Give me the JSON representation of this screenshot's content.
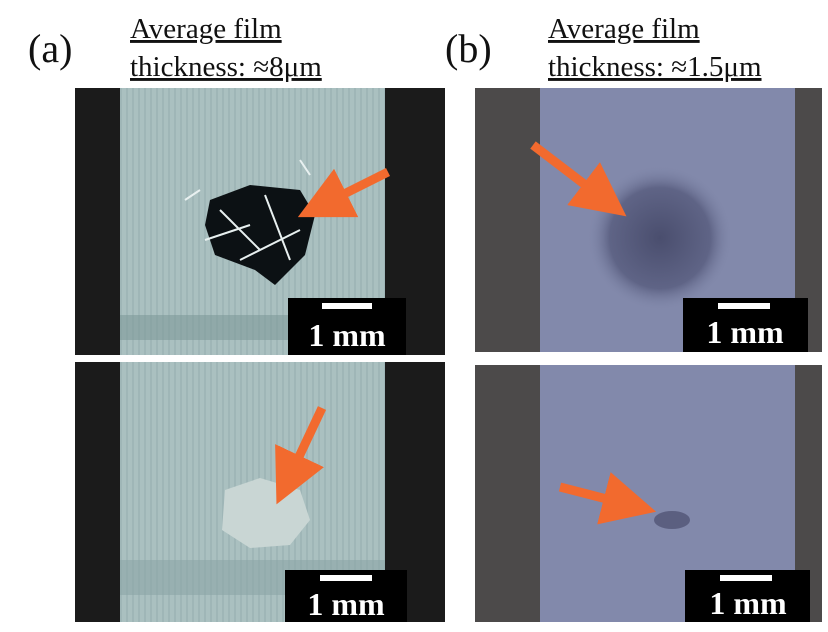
{
  "panels": [
    {
      "label": "(a)",
      "caption": [
        "Average film",
        "thickness: ≈8μm"
      ],
      "images": [
        {
          "scale_bar": "1 mm"
        },
        {
          "scale_bar": "1 mm"
        }
      ]
    },
    {
      "label": "(b)",
      "caption": [
        "Average film",
        "thickness: ≈1.5μm"
      ],
      "images": [
        {
          "scale_bar": "1 mm"
        },
        {
          "scale_bar": "1 mm"
        }
      ]
    }
  ]
}
